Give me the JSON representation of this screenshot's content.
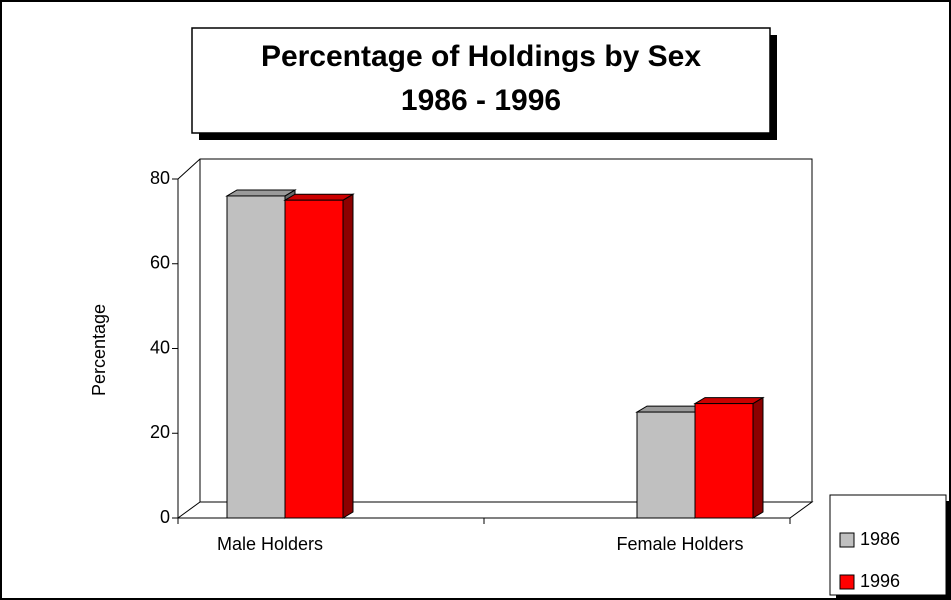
{
  "chart_data": {
    "type": "bar3d",
    "title": "Percentage of Holdings by Sex",
    "subtitle": "1986 - 1996",
    "ylabel": "Percentage",
    "categories": [
      "Male Holders",
      "Female Holders"
    ],
    "series": [
      {
        "name": "1986",
        "color": "#c0c0c0",
        "values": [
          76,
          25
        ]
      },
      {
        "name": "1996",
        "color": "#ff0000",
        "values": [
          75,
          27
        ]
      }
    ],
    "ylim": [
      0,
      80
    ],
    "yticks": [
      0,
      20,
      40,
      60,
      80
    ],
    "grid": false,
    "legend": "lower right"
  }
}
